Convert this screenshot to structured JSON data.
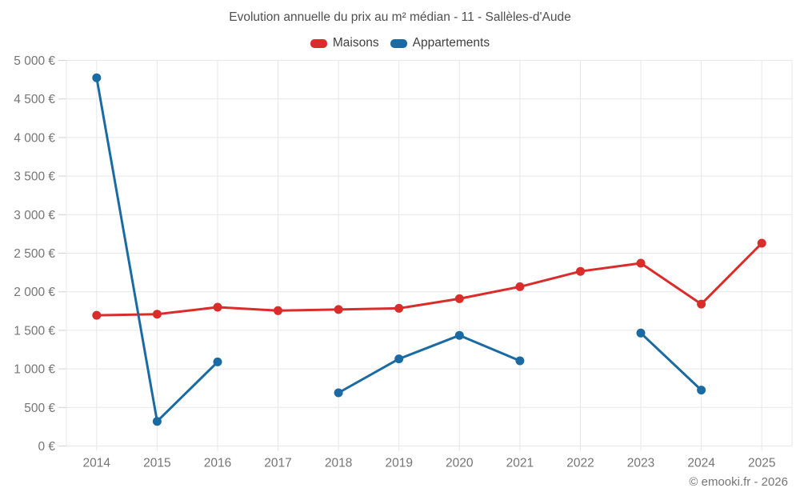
{
  "header": {
    "title": "Evolution annuelle du prix au m² médian - 11 - Sallèles-d'Aude"
  },
  "footer": {
    "credit": "© emooki.fr - 2026"
  },
  "colors": {
    "maisons": "#da2c2a",
    "appartements": "#1a6ba3",
    "grid": "#e7e7e7",
    "tick": "#d2d2d2",
    "axis_text": "#757575"
  },
  "chart_data": {
    "type": "line",
    "title": "Evolution annuelle du prix au m² médian - 11 - Sallèles-d'Aude",
    "categories": [
      "2014",
      "2015",
      "2016",
      "2017",
      "2018",
      "2019",
      "2020",
      "2021",
      "2022",
      "2023",
      "2024",
      "2025"
    ],
    "series": [
      {
        "name": "Maisons",
        "color": "#da2c2a",
        "values": [
          1695,
          1710,
          1800,
          1755,
          1770,
          1785,
          1910,
          2065,
          2265,
          2370,
          1840,
          2630
        ]
      },
      {
        "name": "Appartements",
        "color": "#1a6ba3",
        "values": [
          4775,
          320,
          1090,
          null,
          690,
          1130,
          1435,
          1105,
          null,
          1465,
          725,
          null
        ]
      }
    ],
    "xlabel": "",
    "ylabel": "",
    "ylim": [
      0,
      5000
    ],
    "y_tick_step": 500,
    "y_tick_labels": [
      "0 €",
      "500 €",
      "1 000 €",
      "1 500 €",
      "2 000 €",
      "2 500 €",
      "3 000 €",
      "3 500 €",
      "4 000 €",
      "4 500 €",
      "5 000 €"
    ],
    "grid": "both",
    "legend_position": "top"
  }
}
